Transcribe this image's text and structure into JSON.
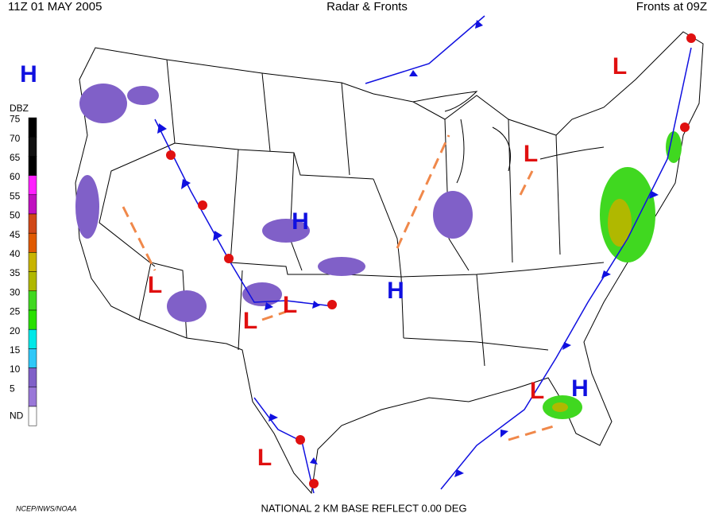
{
  "header": {
    "left": "11Z  01 MAY  2005",
    "center": "Radar & Fronts",
    "right": "Fronts at 09Z"
  },
  "legend": {
    "title": "DBZ",
    "levels": [
      {
        "label": "75",
        "color": "#000000"
      },
      {
        "label": "70",
        "color": "#101010"
      },
      {
        "label": "65",
        "color": "#000000"
      },
      {
        "label": "60",
        "color": "#ff20ff"
      },
      {
        "label": "55",
        "color": "#c010c0"
      },
      {
        "label": "50",
        "color": "#d04818"
      },
      {
        "label": "45",
        "color": "#e05a00"
      },
      {
        "label": "40",
        "color": "#c8b400"
      },
      {
        "label": "35",
        "color": "#b0b800"
      },
      {
        "label": "30",
        "color": "#40d820"
      },
      {
        "label": "25",
        "color": "#28e000"
      },
      {
        "label": "20",
        "color": "#00e8e8"
      },
      {
        "label": "15",
        "color": "#30c8f8"
      },
      {
        "label": "10",
        "color": "#8060c8"
      },
      {
        "label": "5",
        "color": "#9a78d8"
      },
      {
        "label": "ND",
        "color": "#ffffff"
      }
    ]
  },
  "pressure_centers": [
    {
      "label": "H",
      "color": "#1010e0"
    },
    {
      "label": "L",
      "color": "#e01010"
    },
    {
      "label": "L",
      "color": "#e01010"
    },
    {
      "label": "H",
      "color": "#1010e0"
    },
    {
      "label": "L",
      "color": "#e01010"
    },
    {
      "label": "H",
      "color": "#1010e0"
    },
    {
      "label": "L",
      "color": "#e01010"
    },
    {
      "label": "L",
      "color": "#e01010"
    },
    {
      "label": "L",
      "color": "#e01010"
    },
    {
      "label": "H",
      "color": "#1010e0"
    },
    {
      "label": "L",
      "color": "#e01010"
    }
  ],
  "footer": {
    "credit": "NCEP/NWS/NOAA",
    "product": "NATIONAL 2 KM BASE REFLECT 0.00 DEG"
  }
}
